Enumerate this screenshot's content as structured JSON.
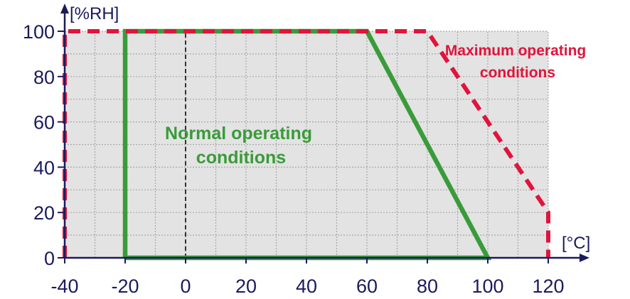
{
  "chart_data": {
    "type": "area",
    "xlabel": "[°C]",
    "ylabel": "[%RH]",
    "xlim": [
      -40,
      125
    ],
    "ylim": [
      0,
      100
    ],
    "x_ticks": [
      -40,
      -20,
      0,
      20,
      40,
      60,
      80,
      100,
      120
    ],
    "y_ticks": [
      0,
      20,
      40,
      60,
      80,
      100
    ],
    "x_minor_step": 10,
    "y_minor_step": 10,
    "grid": true,
    "grid_region": {
      "x": [
        -40,
        120
      ],
      "y": [
        0,
        100
      ]
    },
    "zero_line_x": 0,
    "series": [
      {
        "name": "Normal operating conditions",
        "style": "solid",
        "points": [
          [
            -20,
            0
          ],
          [
            -20,
            100
          ],
          [
            60,
            100
          ],
          [
            100,
            0
          ],
          [
            -20,
            0
          ]
        ]
      },
      {
        "name": "Maximum operating conditions",
        "style": "dashed",
        "points": [
          [
            -40,
            0
          ],
          [
            -40,
            100
          ],
          [
            80,
            100
          ],
          [
            120,
            20
          ],
          [
            120,
            0
          ]
        ]
      }
    ],
    "annotations": [
      {
        "lines": [
          "Normal operating",
          "conditions"
        ]
      },
      {
        "lines": [
          "Maximum operating",
          "conditions"
        ]
      }
    ]
  },
  "colors": {
    "plot_bg": "#e3e3e3",
    "grid": "#a9a9a9",
    "axis": "#1a1a5e",
    "normal": "#3a9b3a",
    "maximum": "#e0143c",
    "zero_line": "#333333"
  }
}
